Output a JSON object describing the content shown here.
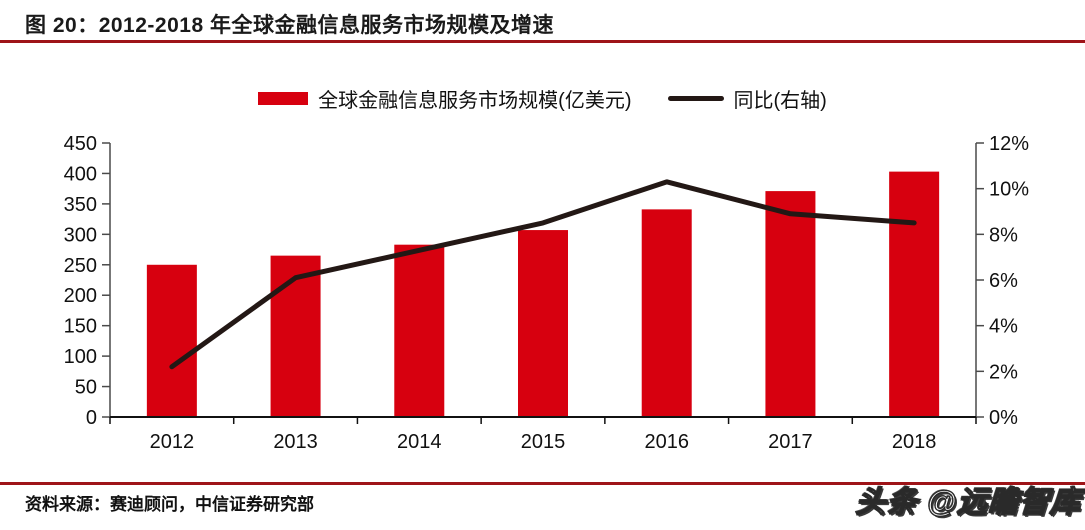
{
  "title": "图 20：2012-2018 年全球金融信息服务市场规模及增速",
  "legend": {
    "bar_label": "全球金融信息服务市场规模(亿美元)",
    "line_label": "同比(右轴)"
  },
  "footer": {
    "source": "资料来源：赛迪顾问，中信证券研究部",
    "watermark": "头条 @远瞻智库"
  },
  "colors": {
    "bar_red": "#d7000f",
    "line_dark": "#231815",
    "rule_red": "#9e1418",
    "axis_line": "#4a4a4a",
    "baseline": "#111111",
    "label_text": "#111111"
  },
  "chart_data": {
    "type": "bar",
    "title": "2012-2018 年全球金融信息服务市场规模及增速",
    "categories": [
      "2012",
      "2013",
      "2014",
      "2015",
      "2016",
      "2017",
      "2018"
    ],
    "series": [
      {
        "name": "全球金融信息服务市场规模(亿美元)",
        "type": "bar",
        "axis": "left",
        "values": [
          250,
          265,
          283,
          307,
          341,
          371,
          403
        ]
      },
      {
        "name": "同比(右轴)",
        "type": "line",
        "axis": "right",
        "unit": "%",
        "values": [
          2.2,
          6.1,
          7.3,
          8.5,
          10.3,
          8.9,
          8.5
        ]
      }
    ],
    "left_axis": {
      "min": 0,
      "max": 450,
      "step": 50,
      "tick_labels": [
        "0",
        "50",
        "100",
        "150",
        "200",
        "250",
        "300",
        "350",
        "400",
        "450"
      ]
    },
    "right_axis": {
      "min": 0,
      "max": 12,
      "step": 2,
      "unit": "%",
      "tick_labels": [
        "0%",
        "2%",
        "4%",
        "6%",
        "8%",
        "10%",
        "12%"
      ]
    },
    "grid": false,
    "legend_position": "top",
    "xlabel": "",
    "ylabel_left": "亿美元",
    "ylabel_right": "%"
  }
}
